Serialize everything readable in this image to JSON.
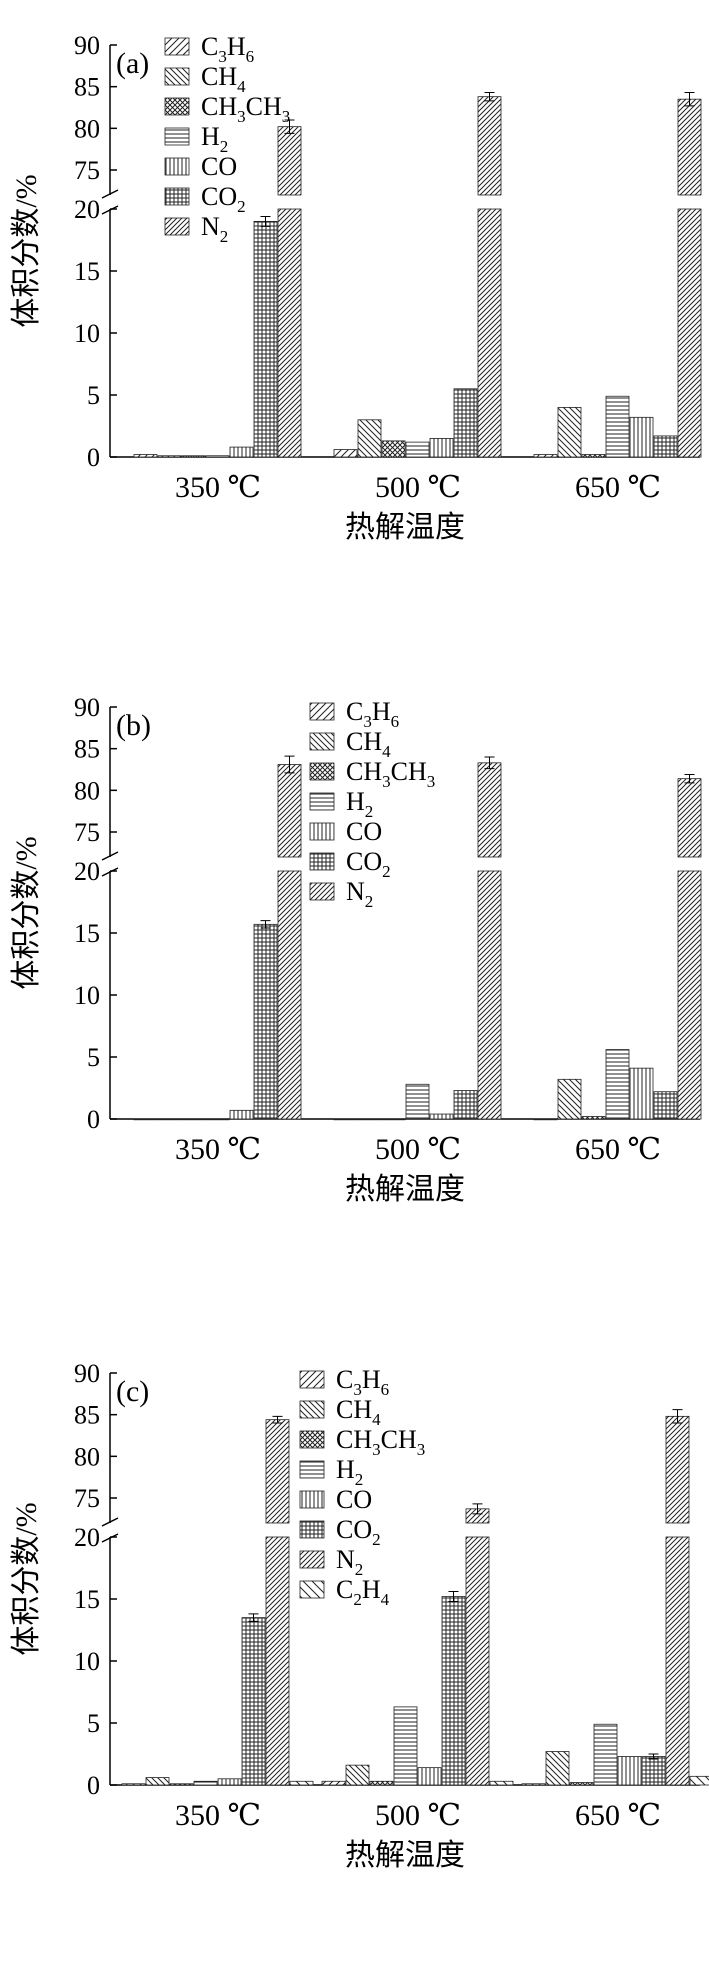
{
  "ylabel": "体积分数/%",
  "xlabel": "热解温度",
  "categories": [
    "350 ℃",
    "500 ℃",
    "650 ℃"
  ],
  "colors": {
    "axis": "#000000",
    "bar_fill": "#ffffff",
    "stroke": "#222222"
  },
  "species_labels": {
    "C3H6": [
      "C",
      "3",
      "H",
      "6"
    ],
    "CH4": [
      "CH",
      "4"
    ],
    "CH3CH3": [
      "CH",
      "3",
      "CH",
      "3"
    ],
    "H2": [
      "H",
      "2"
    ],
    "CO": [
      "CO"
    ],
    "CO2": [
      "CO",
      "2"
    ],
    "N2": [
      "N",
      "2"
    ],
    "C2H4": [
      "C",
      "2",
      "H",
      "4"
    ]
  },
  "chart_data": [
    {
      "panel": "(a)",
      "type": "bar",
      "y_axis_break": {
        "lower": [
          0,
          20
        ],
        "upper": [
          72,
          90
        ]
      },
      "yticks_lower": [
        0,
        5,
        10,
        15,
        20
      ],
      "yticks_upper": [
        75,
        80,
        85,
        90
      ],
      "series": [
        {
          "name": "C3H6",
          "pattern": "diag-fwd",
          "values": [
            0.2,
            0.6,
            0.2
          ],
          "err": [
            0,
            0,
            0
          ]
        },
        {
          "name": "CH4",
          "pattern": "diag-back",
          "values": [
            0.1,
            3.0,
            4.0
          ],
          "err": [
            0,
            0,
            0
          ]
        },
        {
          "name": "CH3CH3",
          "pattern": "crosshatch",
          "values": [
            0.1,
            1.3,
            0.2
          ],
          "err": [
            0,
            0,
            0
          ]
        },
        {
          "name": "H2",
          "pattern": "horizontal",
          "values": [
            0.1,
            1.2,
            4.9
          ],
          "err": [
            0,
            0,
            0
          ]
        },
        {
          "name": "CO",
          "pattern": "vertical",
          "values": [
            0.8,
            1.5,
            3.2
          ],
          "err": [
            0,
            0,
            0
          ]
        },
        {
          "name": "CO2",
          "pattern": "grid",
          "values": [
            19.0,
            5.5,
            1.7
          ],
          "err": [
            0.4,
            0,
            0
          ]
        },
        {
          "name": "N2",
          "pattern": "diag-dense",
          "values": [
            80.2,
            83.8,
            83.5
          ],
          "err": [
            0.8,
            0.5,
            0.8
          ]
        }
      ]
    },
    {
      "panel": "(b)",
      "type": "bar",
      "y_axis_break": {
        "lower": [
          0,
          20
        ],
        "upper": [
          72,
          90
        ]
      },
      "yticks_lower": [
        0,
        5,
        10,
        15,
        20
      ],
      "yticks_upper": [
        75,
        80,
        85,
        90
      ],
      "series": [
        {
          "name": "C3H6",
          "pattern": "diag-fwd",
          "values": [
            0.0,
            0.0,
            0.0
          ],
          "err": [
            0,
            0,
            0
          ]
        },
        {
          "name": "CH4",
          "pattern": "diag-back",
          "values": [
            0.0,
            0.0,
            3.2
          ],
          "err": [
            0,
            0,
            0
          ]
        },
        {
          "name": "CH3CH3",
          "pattern": "crosshatch",
          "values": [
            0.0,
            0.0,
            0.2
          ],
          "err": [
            0,
            0,
            0
          ]
        },
        {
          "name": "H2",
          "pattern": "horizontal",
          "values": [
            0.0,
            2.8,
            5.6
          ],
          "err": [
            0,
            0,
            0
          ]
        },
        {
          "name": "CO",
          "pattern": "vertical",
          "values": [
            0.7,
            0.4,
            4.1
          ],
          "err": [
            0,
            0,
            0
          ]
        },
        {
          "name": "CO2",
          "pattern": "grid",
          "values": [
            15.7,
            2.3,
            2.2
          ],
          "err": [
            0.3,
            0,
            0
          ]
        },
        {
          "name": "N2",
          "pattern": "diag-dense",
          "values": [
            83.1,
            83.3,
            81.4
          ],
          "err": [
            1.0,
            0.7,
            0.5
          ]
        }
      ]
    },
    {
      "panel": "(c)",
      "type": "bar",
      "y_axis_break": {
        "lower": [
          0,
          20
        ],
        "upper": [
          72,
          90
        ]
      },
      "yticks_lower": [
        0,
        5,
        10,
        15,
        20
      ],
      "yticks_upper": [
        75,
        80,
        85,
        90
      ],
      "series": [
        {
          "name": "C3H6",
          "pattern": "diag-fwd",
          "values": [
            0.1,
            0.3,
            0.1
          ],
          "err": [
            0,
            0,
            0
          ]
        },
        {
          "name": "CH4",
          "pattern": "diag-back",
          "values": [
            0.6,
            1.6,
            2.7
          ],
          "err": [
            0,
            0,
            0
          ]
        },
        {
          "name": "CH3CH3",
          "pattern": "crosshatch",
          "values": [
            0.1,
            0.3,
            0.2
          ],
          "err": [
            0,
            0,
            0
          ]
        },
        {
          "name": "H2",
          "pattern": "horizontal",
          "values": [
            0.3,
            6.3,
            4.9
          ],
          "err": [
            0,
            0,
            0
          ]
        },
        {
          "name": "CO",
          "pattern": "vertical",
          "values": [
            0.5,
            1.4,
            2.3
          ],
          "err": [
            0,
            0,
            0
          ]
        },
        {
          "name": "CO2",
          "pattern": "grid",
          "values": [
            13.5,
            15.2,
            2.3
          ],
          "err": [
            0.3,
            0.4,
            0.2
          ]
        },
        {
          "name": "N2",
          "pattern": "diag-dense",
          "values": [
            84.4,
            73.7,
            84.8
          ],
          "err": [
            0.4,
            0.6,
            0.8
          ]
        },
        {
          "name": "C2H4",
          "pattern": "diag-back-sparse",
          "values": [
            0.3,
            0.3,
            0.7
          ],
          "err": [
            0,
            0,
            0
          ]
        }
      ]
    }
  ]
}
